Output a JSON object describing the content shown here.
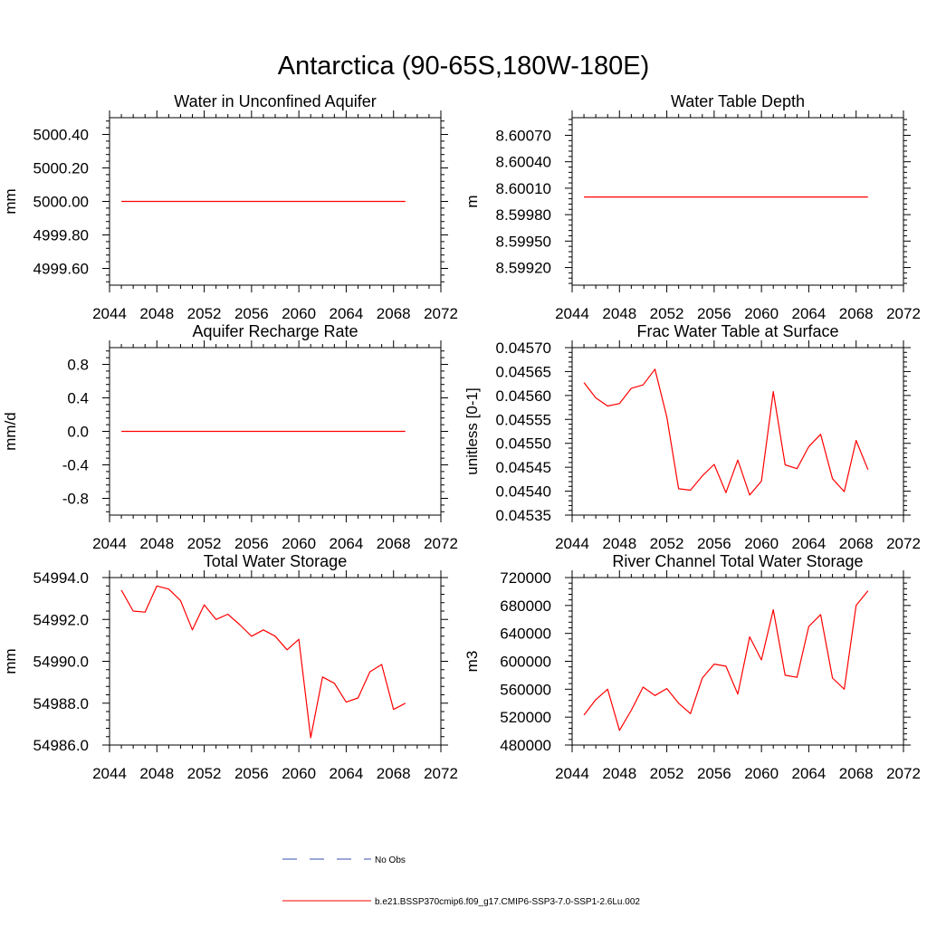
{
  "figure": {
    "title": "Antarctica (90-65S,180W-180E)"
  },
  "colors": {
    "model_line": "#ff0000",
    "obs_line": "#3a4fb0",
    "axis": "#000000"
  },
  "legend": {
    "entries": [
      {
        "label": "No Obs",
        "style": "dashed",
        "color": "#3a4fb0"
      },
      {
        "label": "b.e21.BSSP370cmip6.f09_g17.CMIP6-SSP3-7.0-SSP1-2.6Lu.002",
        "style": "solid",
        "color": "#ff0000"
      }
    ]
  },
  "chart_data": [
    {
      "type": "line",
      "title": "Water in Unconfined Aquifer",
      "ylabel": "mm",
      "xlim": [
        2044,
        2072
      ],
      "ylim": [
        4999.5,
        5000.5
      ],
      "xticks": [
        2044,
        2048,
        2052,
        2056,
        2060,
        2064,
        2068,
        2072
      ],
      "xtick_labels": [
        "2044",
        "2048",
        "2052",
        "2056",
        "2060",
        "2064",
        "2068",
        "2072"
      ],
      "yticks": [
        4999.6,
        4999.8,
        5000.0,
        5000.2,
        5000.4
      ],
      "ytick_labels": [
        "4999.60",
        "4999.80",
        "5000.00",
        "5000.20",
        "5000.40"
      ],
      "series": [
        {
          "x": [
            2045,
            2046,
            2047,
            2048,
            2049,
            2050,
            2051,
            2052,
            2053,
            2054,
            2055,
            2056,
            2057,
            2058,
            2059,
            2060,
            2061,
            2062,
            2063,
            2064,
            2065,
            2066,
            2067,
            2068,
            2069
          ],
          "values": [
            5000.0,
            5000.0,
            5000.0,
            5000.0,
            5000.0,
            5000.0,
            5000.0,
            5000.0,
            5000.0,
            5000.0,
            5000.0,
            5000.0,
            5000.0,
            5000.0,
            5000.0,
            5000.0,
            5000.0,
            5000.0,
            5000.0,
            5000.0,
            5000.0,
            5000.0,
            5000.0,
            5000.0,
            5000.0
          ]
        }
      ]
    },
    {
      "type": "line",
      "title": "Water Table Depth",
      "ylabel": "m",
      "xlim": [
        2044,
        2072
      ],
      "ylim": [
        8.599,
        8.6009
      ],
      "xticks": [
        2044,
        2048,
        2052,
        2056,
        2060,
        2064,
        2068,
        2072
      ],
      "xtick_labels": [
        "2044",
        "2048",
        "2052",
        "2056",
        "2060",
        "2064",
        "2068",
        "2072"
      ],
      "yticks": [
        8.5992,
        8.5995,
        8.5998,
        8.6001,
        8.6004,
        8.6007
      ],
      "ytick_labels": [
        "8.59920",
        "8.59950",
        "8.59980",
        "8.60010",
        "8.60040",
        "8.60070"
      ],
      "series": [
        {
          "x": [
            2045,
            2046,
            2047,
            2048,
            2049,
            2050,
            2051,
            2052,
            2053,
            2054,
            2055,
            2056,
            2057,
            2058,
            2059,
            2060,
            2061,
            2062,
            2063,
            2064,
            2065,
            2066,
            2067,
            2068,
            2069
          ],
          "values": [
            8.6,
            8.6,
            8.6,
            8.6,
            8.6,
            8.6,
            8.6,
            8.6,
            8.6,
            8.6,
            8.6,
            8.6,
            8.6,
            8.6,
            8.6,
            8.6,
            8.6,
            8.6,
            8.6,
            8.6,
            8.6,
            8.6,
            8.6,
            8.6,
            8.6
          ]
        }
      ]
    },
    {
      "type": "line",
      "title": "Aquifer Recharge Rate",
      "ylabel": "mm/d",
      "xlim": [
        2044,
        2072
      ],
      "ylim": [
        -1.0,
        1.0
      ],
      "xticks": [
        2044,
        2048,
        2052,
        2056,
        2060,
        2064,
        2068,
        2072
      ],
      "xtick_labels": [
        "2044",
        "2048",
        "2052",
        "2056",
        "2060",
        "2064",
        "2068",
        "2072"
      ],
      "yticks": [
        -0.8,
        -0.4,
        0.0,
        0.4,
        0.8
      ],
      "ytick_labels": [
        "-0.8",
        "-0.4",
        "0.0",
        "0.4",
        "0.8"
      ],
      "series": [
        {
          "x": [
            2045,
            2046,
            2047,
            2048,
            2049,
            2050,
            2051,
            2052,
            2053,
            2054,
            2055,
            2056,
            2057,
            2058,
            2059,
            2060,
            2061,
            2062,
            2063,
            2064,
            2065,
            2066,
            2067,
            2068,
            2069
          ],
          "values": [
            0,
            0,
            0,
            0,
            0,
            0,
            0,
            0,
            0,
            0,
            0,
            0,
            0,
            0,
            0,
            0,
            0,
            0,
            0,
            0,
            0,
            0,
            0,
            0,
            0
          ]
        }
      ]
    },
    {
      "type": "line",
      "title": "Frac Water Table at Surface",
      "ylabel": "unitless [0-1]",
      "xlim": [
        2044,
        2072
      ],
      "ylim": [
        0.04535,
        0.0457
      ],
      "xticks": [
        2044,
        2048,
        2052,
        2056,
        2060,
        2064,
        2068,
        2072
      ],
      "xtick_labels": [
        "2044",
        "2048",
        "2052",
        "2056",
        "2060",
        "2064",
        "2068",
        "2072"
      ],
      "yticks": [
        0.04535,
        0.0454,
        0.04545,
        0.0455,
        0.04555,
        0.0456,
        0.04565,
        0.0457
      ],
      "ytick_labels": [
        "0.04535",
        "0.04540",
        "0.04545",
        "0.04550",
        "0.04555",
        "0.04560",
        "0.04565",
        "0.04570"
      ],
      "series": [
        {
          "x": [
            2045,
            2046,
            2047,
            2048,
            2049,
            2050,
            2051,
            2052,
            2053,
            2054,
            2055,
            2056,
            2057,
            2058,
            2059,
            2060,
            2061,
            2062,
            2063,
            2064,
            2065,
            2066,
            2067,
            2068,
            2069
          ],
          "values": [
            0.045627,
            0.045595,
            0.045578,
            0.045583,
            0.045615,
            0.045622,
            0.045655,
            0.045555,
            0.045405,
            0.045402,
            0.045432,
            0.045456,
            0.045397,
            0.045465,
            0.045392,
            0.045421,
            0.045608,
            0.045455,
            0.045447,
            0.045493,
            0.045519,
            0.045426,
            0.045399,
            0.045506,
            0.045445
          ]
        }
      ]
    },
    {
      "type": "line",
      "title": "Total Water Storage",
      "ylabel": "mm",
      "xlim": [
        2044,
        2072
      ],
      "ylim": [
        54986.0,
        54994.0
      ],
      "xticks": [
        2044,
        2048,
        2052,
        2056,
        2060,
        2064,
        2068,
        2072
      ],
      "xtick_labels": [
        "2044",
        "2048",
        "2052",
        "2056",
        "2060",
        "2064",
        "2068",
        "2072"
      ],
      "yticks": [
        54986.0,
        54988.0,
        54990.0,
        54992.0,
        54994.0
      ],
      "ytick_labels": [
        "54986.0",
        "54988.0",
        "54990.0",
        "54992.0",
        "54994.0"
      ],
      "series": [
        {
          "x": [
            2045,
            2046,
            2047,
            2048,
            2049,
            2050,
            2051,
            2052,
            2053,
            2054,
            2055,
            2056,
            2057,
            2058,
            2059,
            2060,
            2061,
            2062,
            2063,
            2064,
            2065,
            2066,
            2067,
            2068,
            2069
          ],
          "values": [
            54993.4,
            54992.4,
            54992.35,
            54993.6,
            54993.45,
            54992.9,
            54991.5,
            54992.7,
            54992.0,
            54992.25,
            54991.75,
            54991.2,
            54991.5,
            54991.2,
            54990.55,
            54991.05,
            54986.35,
            54989.25,
            54988.95,
            54988.05,
            54988.25,
            54989.5,
            54989.85,
            54987.7,
            54988.0
          ]
        }
      ]
    },
    {
      "type": "line",
      "title": "River Channel Total Water Storage",
      "ylabel": "m3",
      "xlim": [
        2044,
        2072
      ],
      "ylim": [
        480000,
        720000
      ],
      "xticks": [
        2044,
        2048,
        2052,
        2056,
        2060,
        2064,
        2068,
        2072
      ],
      "xtick_labels": [
        "2044",
        "2048",
        "2052",
        "2056",
        "2060",
        "2064",
        "2068",
        "2072"
      ],
      "yticks": [
        480000,
        520000,
        560000,
        600000,
        640000,
        680000,
        720000
      ],
      "ytick_labels": [
        "480000",
        "520000",
        "560000",
        "600000",
        "640000",
        "680000",
        "720000"
      ],
      "series": [
        {
          "x": [
            2045,
            2046,
            2047,
            2048,
            2049,
            2050,
            2051,
            2052,
            2053,
            2054,
            2055,
            2056,
            2057,
            2058,
            2059,
            2060,
            2061,
            2062,
            2063,
            2064,
            2065,
            2066,
            2067,
            2068,
            2069
          ],
          "values": [
            523000,
            545000,
            560000,
            501000,
            530000,
            563000,
            551000,
            561000,
            540000,
            525000,
            576000,
            596000,
            593000,
            553000,
            635000,
            602000,
            674000,
            580000,
            577000,
            650000,
            667000,
            576000,
            560000,
            680000,
            701000
          ]
        }
      ]
    }
  ]
}
